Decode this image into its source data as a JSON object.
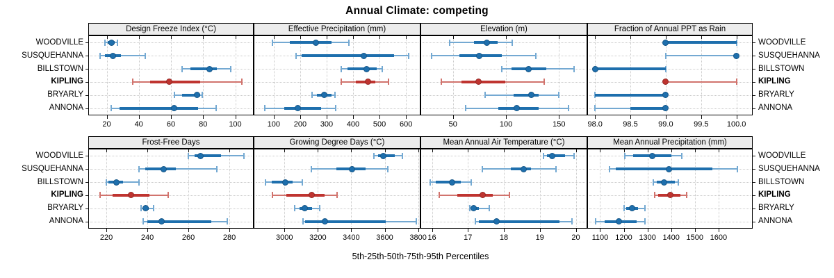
{
  "title": "Annual Climate: competing",
  "xlabel": "5th-25th-50th-75th-95th Percentiles",
  "locations": [
    "WOODVILLE",
    "SUSQUEHANNA",
    "BILLSTOWN",
    "KIPLING",
    "BRYARLY",
    "ANNONA"
  ],
  "highlight": "KIPLING",
  "percentiles": [
    5,
    25,
    50,
    75,
    95
  ],
  "colors": {
    "blue": "#1e6fad",
    "blue_light": "#74a9d2",
    "red": "#bf3430",
    "red_light": "#d1736d",
    "grid": "#c9c9c9",
    "strip_bg": "#ececec",
    "border": "#000000"
  },
  "chart_data": [
    {
      "type": "dot-whisker",
      "title": "Design Freeze Index (°C)",
      "xlim": [
        9,
        111
      ],
      "ticks": [
        20,
        40,
        60,
        80,
        100
      ],
      "tick_labels": [
        "20",
        "40",
        "60",
        "80",
        "100"
      ],
      "series": [
        {
          "name": "WOODVILLE",
          "values": [
            19,
            20.5,
            23,
            25,
            26.5
          ]
        },
        {
          "name": "SUSQUEHANNA",
          "values": [
            16,
            19,
            24,
            29,
            44
          ]
        },
        {
          "name": "BILLSTOWN",
          "values": [
            67,
            72,
            84,
            88.5,
            97
          ]
        },
        {
          "name": "KIPLING",
          "values": [
            36,
            47,
            59,
            78,
            104
          ]
        },
        {
          "name": "BRYARLY",
          "values": [
            62,
            67,
            76,
            78,
            79.5
          ]
        },
        {
          "name": "ANNONA",
          "values": [
            23,
            28,
            62,
            77,
            88
          ]
        }
      ]
    },
    {
      "type": "dot-whisker",
      "title": "Effective Precipitation (mm)",
      "xlim": [
        27,
        652
      ],
      "ticks": [
        100,
        200,
        300,
        400,
        500,
        600
      ],
      "tick_labels": [
        "100",
        "200",
        "300",
        "400",
        "500",
        "600"
      ],
      "series": [
        {
          "name": "WOODVILLE",
          "values": [
            95,
            160,
            260,
            320,
            385
          ]
        },
        {
          "name": "SUSQUEHANNA",
          "values": [
            185,
            205,
            440,
            555,
            610
          ]
        },
        {
          "name": "BILLSTOWN",
          "values": [
            355,
            380,
            450,
            490,
            510
          ]
        },
        {
          "name": "KIPLING",
          "values": [
            355,
            410,
            455,
            485,
            535
          ]
        },
        {
          "name": "BRYARLY",
          "values": [
            245,
            262,
            290,
            318,
            332
          ]
        },
        {
          "name": "ANNONA",
          "values": [
            65,
            140,
            190,
            280,
            335
          ]
        }
      ]
    },
    {
      "type": "dot-whisker",
      "title": "Elevation (m)",
      "xlim": [
        20,
        176
      ],
      "ticks": [
        50,
        100,
        150
      ],
      "tick_labels": [
        "50",
        "100",
        "150"
      ],
      "series": [
        {
          "name": "WOODVILLE",
          "values": [
            47,
            70,
            82,
            92,
            106
          ]
        },
        {
          "name": "SUSQUEHANNA",
          "values": [
            30,
            56,
            75,
            96,
            128
          ]
        },
        {
          "name": "BILLSTOWN",
          "values": [
            96,
            105,
            121,
            138,
            164
          ]
        },
        {
          "name": "KIPLING",
          "values": [
            39,
            58,
            74,
            99,
            136
          ]
        },
        {
          "name": "BRYARLY",
          "values": [
            80,
            107,
            124,
            131,
            150
          ]
        },
        {
          "name": "ANNONA",
          "values": [
            62,
            93,
            110,
            131,
            159
          ]
        }
      ]
    },
    {
      "type": "dot-whisker",
      "title": "Fraction of Annual PPT as Rain",
      "xlim": [
        97.9,
        100.22
      ],
      "ticks": [
        98,
        98.5,
        99,
        99.5,
        100
      ],
      "tick_labels": [
        "98.0",
        "98.5",
        "99.0",
        "99.5",
        "100.0"
      ],
      "series": [
        {
          "name": "WOODVILLE",
          "values": [
            99,
            99,
            99,
            100,
            100
          ]
        },
        {
          "name": "SUSQUEHANNA",
          "values": [
            99,
            100,
            100,
            100,
            100
          ]
        },
        {
          "name": "BILLSTOWN",
          "values": [
            98,
            98,
            98,
            99,
            99
          ]
        },
        {
          "name": "KIPLING",
          "values": [
            99,
            99,
            99,
            99,
            100
          ]
        },
        {
          "name": "BRYARLY",
          "values": [
            98,
            98,
            99,
            99,
            99
          ]
        },
        {
          "name": "ANNONA",
          "values": [
            98,
            98.5,
            99,
            99,
            99
          ]
        }
      ]
    },
    {
      "type": "dot-whisker",
      "title": "Frost-Free Days",
      "xlim": [
        211.5,
        291.5
      ],
      "ticks": [
        220,
        240,
        260,
        280
      ],
      "tick_labels": [
        "220",
        "240",
        "260",
        "280"
      ],
      "series": [
        {
          "name": "WOODVILLE",
          "values": [
            260,
            263,
            266,
            276,
            287
          ]
        },
        {
          "name": "SUSQUEHANNA",
          "values": [
            236,
            239,
            248,
            254,
            274
          ]
        },
        {
          "name": "BILLSTOWN",
          "values": [
            220,
            221,
            225,
            228,
            236
          ]
        },
        {
          "name": "KIPLING",
          "values": [
            217,
            223,
            232,
            241,
            250
          ]
        },
        {
          "name": "BRYARLY",
          "values": [
            237,
            238,
            239,
            240.5,
            243
          ]
        },
        {
          "name": "ANNONA",
          "values": [
            238,
            240,
            247,
            271,
            279
          ]
        }
      ]
    },
    {
      "type": "dot-whisker",
      "title": "Growing Degree Days (°C)",
      "xlim": [
        2820,
        3810
      ],
      "ticks": [
        3000,
        3200,
        3400,
        3600,
        3800
      ],
      "tick_labels": [
        "3000",
        "3200",
        "3400",
        "3600",
        "3800"
      ],
      "series": [
        {
          "name": "WOODVILLE",
          "values": [
            3535,
            3560,
            3590,
            3660,
            3705
          ]
        },
        {
          "name": "SUSQUEHANNA",
          "values": [
            3160,
            3310,
            3405,
            3485,
            3620
          ]
        },
        {
          "name": "BILLSTOWN",
          "values": [
            2885,
            2925,
            3005,
            3050,
            3105
          ]
        },
        {
          "name": "KIPLING",
          "values": [
            2930,
            3010,
            3165,
            3240,
            3315
          ]
        },
        {
          "name": "BRYARLY",
          "values": [
            3060,
            3090,
            3120,
            3165,
            3210
          ]
        },
        {
          "name": "ANNONA",
          "values": [
            3110,
            3125,
            3240,
            3605,
            3790
          ]
        }
      ]
    },
    {
      "type": "dot-whisker",
      "title": "Mean Annual Air Temperature (°C)",
      "xlim": [
        15.7,
        20.3
      ],
      "ticks": [
        16,
        17,
        18,
        19,
        20
      ],
      "tick_labels": [
        "16",
        "17",
        "18",
        "19",
        "20"
      ],
      "series": [
        {
          "name": "WOODVILLE",
          "values": [
            19.1,
            19.2,
            19.35,
            19.7,
            19.95
          ]
        },
        {
          "name": "SUSQUEHANNA",
          "values": [
            17.4,
            18.2,
            18.55,
            18.75,
            19.45
          ]
        },
        {
          "name": "BILLSTOWN",
          "values": [
            15.95,
            16.1,
            16.55,
            16.8,
            17.1
          ]
        },
        {
          "name": "KIPLING",
          "values": [
            16.2,
            16.7,
            17.4,
            17.7,
            18.15
          ]
        },
        {
          "name": "BRYARLY",
          "values": [
            17.05,
            17.1,
            17.15,
            17.3,
            17.6
          ]
        },
        {
          "name": "ANNONA",
          "values": [
            17.2,
            17.3,
            17.8,
            19.55,
            19.9
          ]
        }
      ]
    },
    {
      "type": "dot-whisker",
      "title": "Mean Annual Precipitation (mm)",
      "xlim": [
        1049,
        1741
      ],
      "ticks": [
        1100,
        1200,
        1300,
        1400,
        1500,
        1600
      ],
      "tick_labels": [
        "1100",
        "1200",
        "1300",
        "1400",
        "1500",
        "1600"
      ],
      "series": [
        {
          "name": "WOODVILLE",
          "values": [
            1205,
            1240,
            1320,
            1400,
            1445
          ]
        },
        {
          "name": "SUSQUEHANNA",
          "values": [
            1140,
            1165,
            1390,
            1575,
            1680
          ]
        },
        {
          "name": "BILLSTOWN",
          "values": [
            1325,
            1340,
            1370,
            1415,
            1430
          ]
        },
        {
          "name": "KIPLING",
          "values": [
            1330,
            1345,
            1395,
            1440,
            1465
          ]
        },
        {
          "name": "BRYARLY",
          "values": [
            1200,
            1210,
            1235,
            1260,
            1290
          ]
        },
        {
          "name": "ANNONA",
          "values": [
            1080,
            1120,
            1180,
            1255,
            1290
          ]
        }
      ]
    }
  ]
}
